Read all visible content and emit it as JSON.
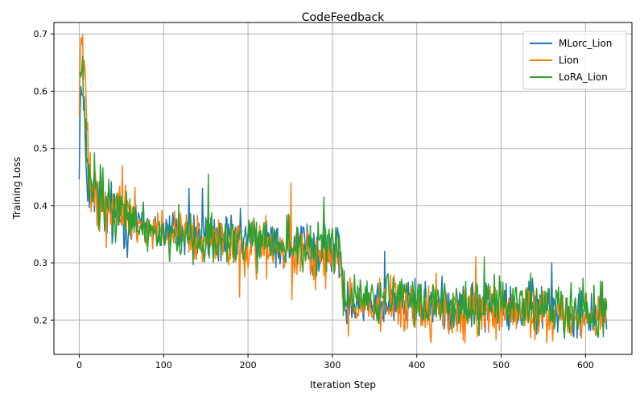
{
  "chart_data": {
    "type": "line",
    "title": "CodeFeedback",
    "xlabel": "Iteration Step",
    "ylabel": "Training Loss",
    "xlim": [
      -30,
      655
    ],
    "ylim": [
      0.14,
      0.72
    ],
    "xticks": [
      0,
      100,
      200,
      300,
      400,
      500,
      600
    ],
    "yticks": [
      0.2,
      0.3,
      0.4,
      0.5,
      0.6,
      0.7
    ],
    "xtick_labels": [
      "0",
      "100",
      "200",
      "300",
      "400",
      "500",
      "600"
    ],
    "ytick_labels": [
      "0.2",
      "0.3",
      "0.4",
      "0.5",
      "0.6",
      "0.7"
    ],
    "grid": true,
    "legend_position": "top-right",
    "x_count": 626,
    "series": [
      {
        "name": "MLorc_Lion",
        "color": "#1f77b4",
        "control_points": [
          [
            0,
            0.5
          ],
          [
            2,
            0.6
          ],
          [
            5,
            0.57
          ],
          [
            8,
            0.48
          ],
          [
            12,
            0.42
          ],
          [
            20,
            0.41
          ],
          [
            40,
            0.38
          ],
          [
            60,
            0.375
          ],
          [
            80,
            0.365
          ],
          [
            100,
            0.355
          ],
          [
            150,
            0.345
          ],
          [
            200,
            0.338
          ],
          [
            250,
            0.328
          ],
          [
            300,
            0.322
          ],
          [
            310,
            0.32
          ],
          [
            313,
            0.24
          ],
          [
            350,
            0.232
          ],
          [
            400,
            0.228
          ],
          [
            450,
            0.225
          ],
          [
            500,
            0.222
          ],
          [
            550,
            0.222
          ],
          [
            600,
            0.218
          ],
          [
            625,
            0.215
          ]
        ],
        "noise": 0.031,
        "spikes": [
          [
            362,
            0.32
          ],
          [
            560,
            0.3
          ],
          [
            130,
            0.43
          ],
          [
            146,
            0.43
          ]
        ]
      },
      {
        "name": "Lion",
        "color": "#ff7f0e",
        "control_points": [
          [
            0,
            0.58
          ],
          [
            2,
            0.69
          ],
          [
            5,
            0.65
          ],
          [
            10,
            0.52
          ],
          [
            15,
            0.45
          ],
          [
            25,
            0.41
          ],
          [
            40,
            0.395
          ],
          [
            60,
            0.38
          ],
          [
            80,
            0.365
          ],
          [
            100,
            0.352
          ],
          [
            150,
            0.335
          ],
          [
            200,
            0.325
          ],
          [
            250,
            0.318
          ],
          [
            300,
            0.308
          ],
          [
            310,
            0.305
          ],
          [
            313,
            0.232
          ],
          [
            350,
            0.225
          ],
          [
            400,
            0.22
          ],
          [
            450,
            0.215
          ],
          [
            500,
            0.212
          ],
          [
            550,
            0.21
          ],
          [
            600,
            0.205
          ],
          [
            625,
            0.205
          ]
        ],
        "noise": 0.033,
        "spikes": [
          [
            51,
            0.47
          ],
          [
            251,
            0.44
          ],
          [
            190,
            0.24
          ],
          [
            252,
            0.235
          ],
          [
            470,
            0.31
          ],
          [
            455,
            0.165
          ]
        ]
      },
      {
        "name": "LoRA_Lion",
        "color": "#2ca02c",
        "control_points": [
          [
            0,
            0.62
          ],
          [
            3,
            0.63
          ],
          [
            6,
            0.56
          ],
          [
            10,
            0.45
          ],
          [
            20,
            0.415
          ],
          [
            40,
            0.39
          ],
          [
            60,
            0.375
          ],
          [
            80,
            0.36
          ],
          [
            100,
            0.35
          ],
          [
            150,
            0.34
          ],
          [
            200,
            0.335
          ],
          [
            250,
            0.33
          ],
          [
            300,
            0.322
          ],
          [
            310,
            0.32
          ],
          [
            313,
            0.245
          ],
          [
            350,
            0.237
          ],
          [
            400,
            0.232
          ],
          [
            450,
            0.228
          ],
          [
            500,
            0.226
          ],
          [
            550,
            0.224
          ],
          [
            600,
            0.222
          ],
          [
            625,
            0.22
          ]
        ],
        "noise": 0.032,
        "spikes": [
          [
            153,
            0.455
          ],
          [
            290,
            0.415
          ],
          [
            480,
            0.31
          ],
          [
            575,
            0.168
          ],
          [
            615,
            0.17
          ]
        ]
      }
    ]
  }
}
